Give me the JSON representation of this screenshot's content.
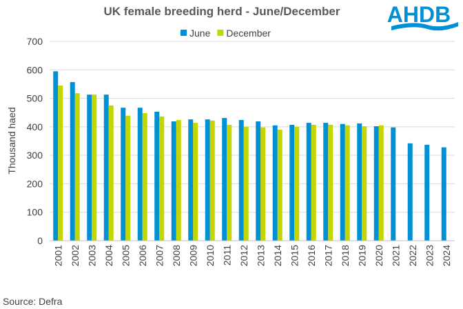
{
  "chart_data": {
    "type": "bar",
    "title": "UK female breeding herd - June/December",
    "ylabel": "Thousand haed",
    "xlabel": "",
    "ylim": [
      0,
      700
    ],
    "yticks": [
      0,
      100,
      200,
      300,
      400,
      500,
      600,
      700
    ],
    "grid": true,
    "legend_position": "top",
    "categories": [
      "2001",
      "2002",
      "2003",
      "2004",
      "2005",
      "2006",
      "2007",
      "2008",
      "2009",
      "2010",
      "2011",
      "2012",
      "2013",
      "2014",
      "2015",
      "2016",
      "2017",
      "2018",
      "2019",
      "2020",
      "2021",
      "2022",
      "2023",
      "2024"
    ],
    "series": [
      {
        "name": "June",
        "color": "#0090d4",
        "values": [
          595,
          557,
          513,
          513,
          467,
          467,
          453,
          419,
          426,
          426,
          431,
          424,
          419,
          405,
          407,
          414,
          414,
          410,
          412,
          402,
          398,
          342,
          337,
          328
        ]
      },
      {
        "name": "December",
        "color": "#c4d600",
        "values": [
          545,
          518,
          513,
          475,
          439,
          448,
          436,
          424,
          414,
          422,
          407,
          400,
          398,
          390,
          400,
          407,
          407,
          405,
          402,
          405,
          null,
          null,
          null,
          null
        ]
      }
    ]
  },
  "source": "Source: Defra",
  "logo": {
    "text": "AHDB",
    "color": "#0090d4"
  }
}
